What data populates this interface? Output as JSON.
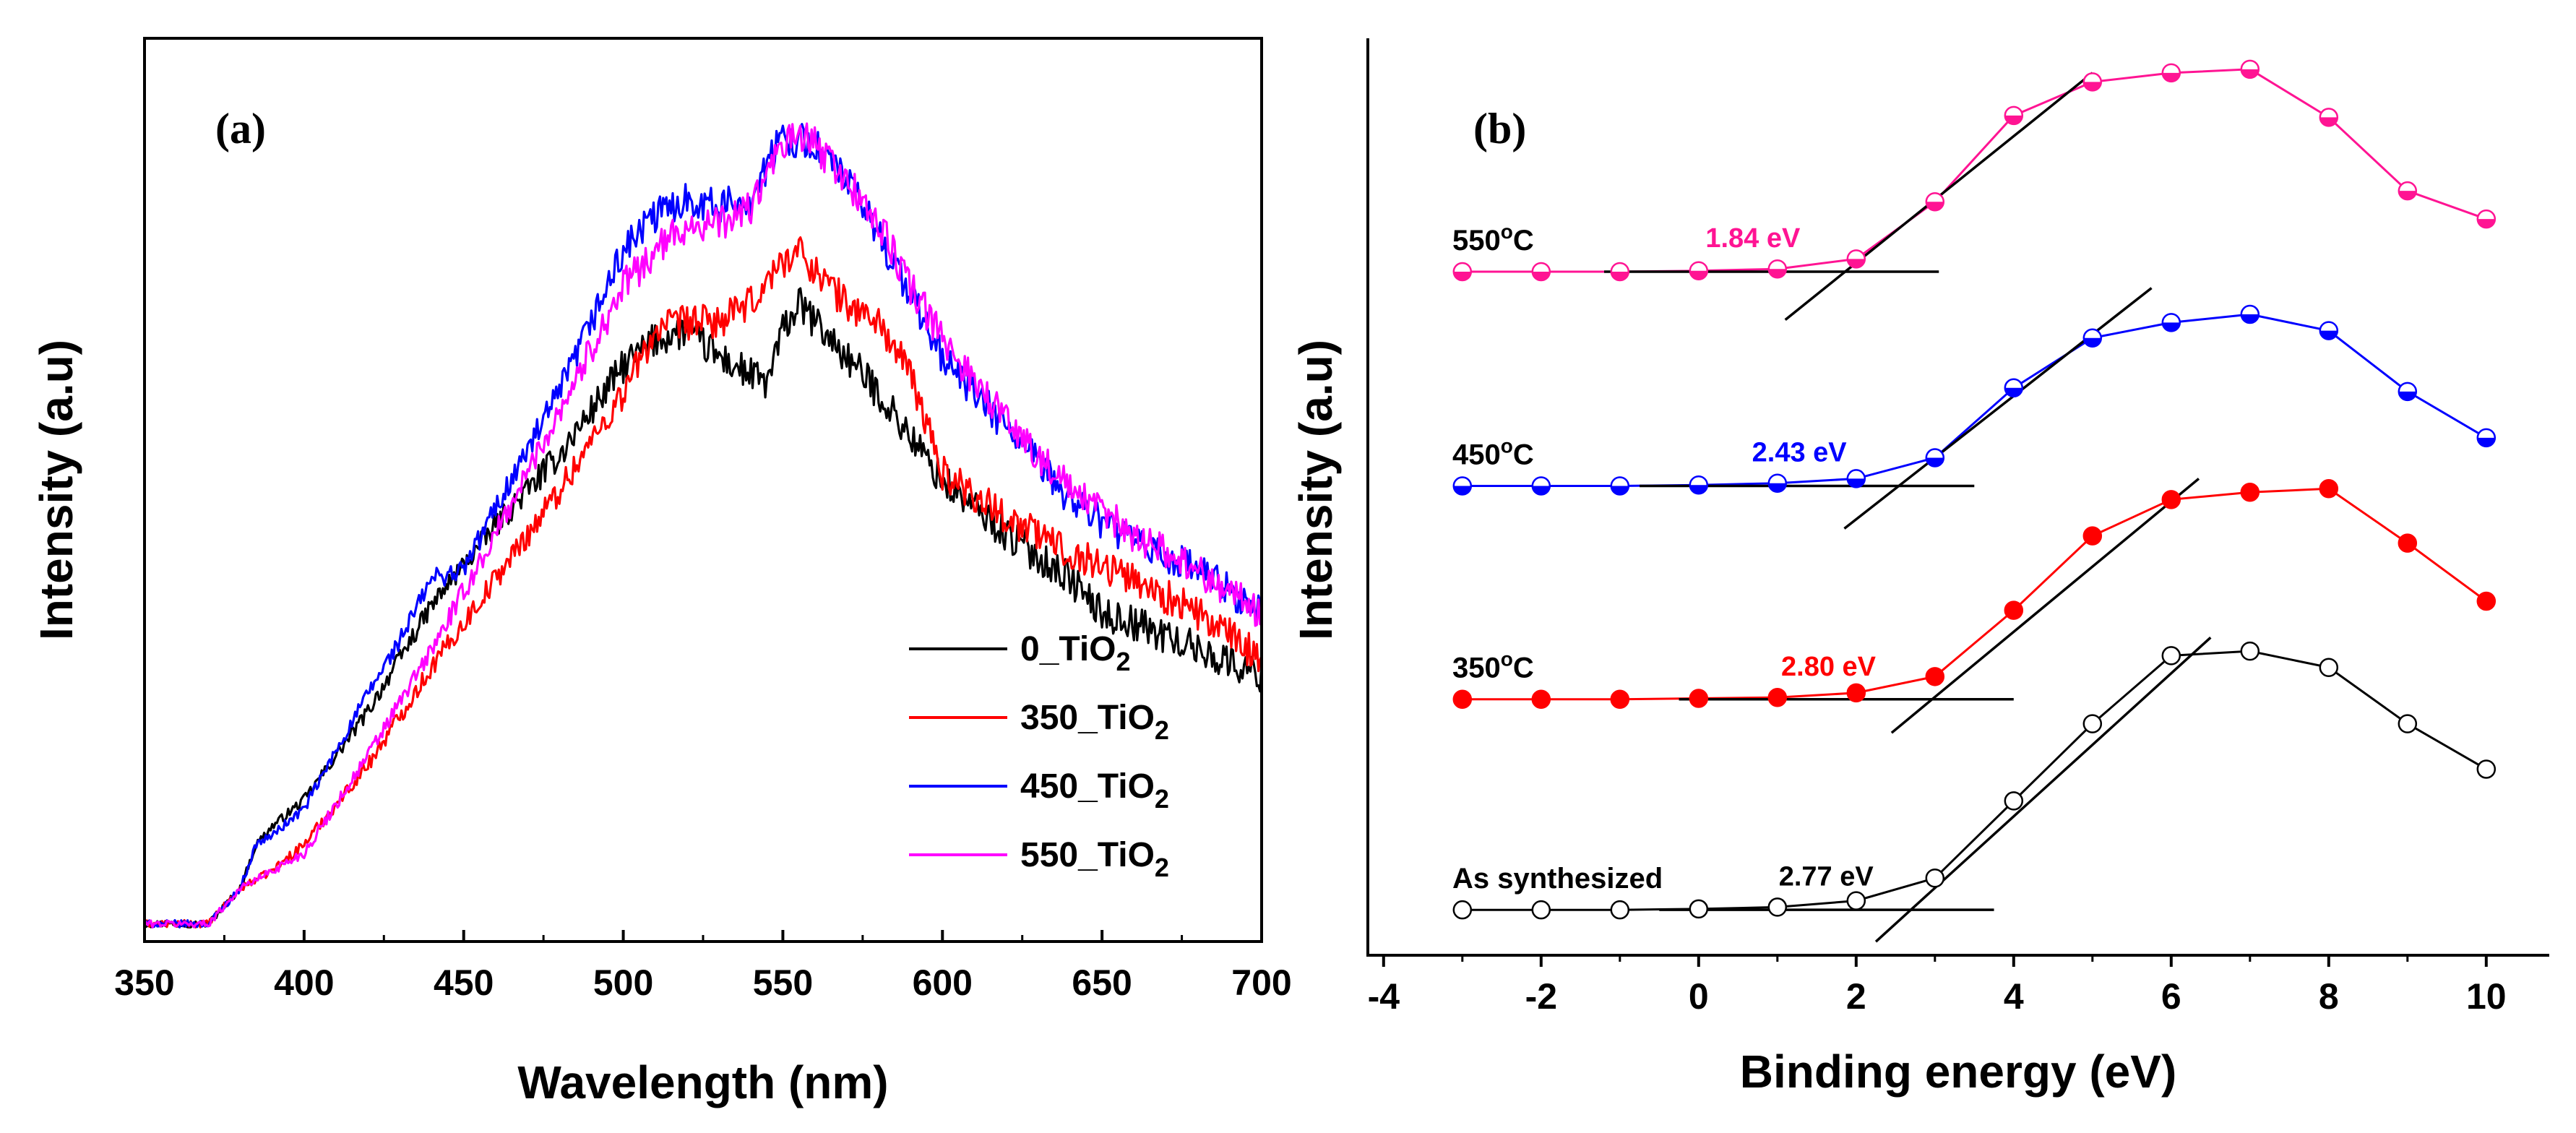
{
  "chart_data": [
    {
      "type": "line",
      "panel_label": "(a)",
      "xlabel": "Wavelength (nm)",
      "ylabel": "Intensity (a.u)",
      "xlim": [
        350,
        700
      ],
      "ylim": [
        0,
        1
      ],
      "xticks": [
        350,
        400,
        450,
        500,
        550,
        600,
        650,
        700
      ],
      "yticks_shown": false,
      "legend_position": "lower-right",
      "series": [
        {
          "name": "0_TiO2",
          "label_main": "0_TiO",
          "label_sub": "2",
          "color": "#000000",
          "x": [
            350,
            370,
            380,
            385,
            390,
            400,
            420,
            440,
            460,
            480,
            500,
            510,
            520,
            530,
            540,
            545,
            550,
            555,
            560,
            570,
            580,
            590,
            600,
            620,
            640,
            650,
            660,
            680,
            700
          ],
          "y": [
            0.02,
            0.02,
            0.06,
            0.11,
            0.13,
            0.16,
            0.26,
            0.38,
            0.47,
            0.55,
            0.65,
            0.68,
            0.69,
            0.66,
            0.64,
            0.63,
            0.69,
            0.72,
            0.7,
            0.66,
            0.62,
            0.57,
            0.52,
            0.46,
            0.41,
            0.37,
            0.36,
            0.33,
            0.3
          ]
        },
        {
          "name": "350_TiO2",
          "label_main": "350_TiO",
          "label_sub": "2",
          "color": "#ff0000",
          "x": [
            350,
            370,
            380,
            390,
            400,
            420,
            440,
            460,
            480,
            500,
            510,
            520,
            530,
            540,
            550,
            555,
            560,
            570,
            580,
            590,
            600,
            620,
            640,
            660,
            680,
            700
          ],
          "y": [
            0.02,
            0.02,
            0.06,
            0.08,
            0.11,
            0.2,
            0.31,
            0.41,
            0.51,
            0.62,
            0.69,
            0.7,
            0.7,
            0.72,
            0.77,
            0.78,
            0.76,
            0.72,
            0.7,
            0.64,
            0.53,
            0.48,
            0.44,
            0.41,
            0.37,
            0.32
          ]
        },
        {
          "name": "450_TiO2",
          "label_main": "450_TiO",
          "label_sub": "2",
          "color": "#0000ff",
          "x": [
            350,
            370,
            380,
            385,
            390,
            400,
            420,
            430,
            440,
            450,
            460,
            480,
            500,
            510,
            520,
            530,
            540,
            550,
            560,
            570,
            580,
            590,
            600,
            620,
            640,
            660,
            680,
            700
          ],
          "y": [
            0.02,
            0.02,
            0.06,
            0.11,
            0.12,
            0.15,
            0.28,
            0.34,
            0.41,
            0.42,
            0.49,
            0.62,
            0.78,
            0.82,
            0.84,
            0.83,
            0.84,
            0.91,
            0.9,
            0.86,
            0.8,
            0.73,
            0.66,
            0.58,
            0.5,
            0.45,
            0.42,
            0.37
          ]
        },
        {
          "name": "550_TiO2",
          "label_main": "550_TiO",
          "label_sub": "2",
          "color": "#ff00ff",
          "x": [
            350,
            370,
            380,
            390,
            400,
            420,
            440,
            460,
            480,
            500,
            510,
            520,
            530,
            540,
            550,
            555,
            560,
            570,
            580,
            590,
            600,
            620,
            640,
            660,
            680,
            700
          ],
          "y": [
            0.02,
            0.02,
            0.06,
            0.08,
            0.1,
            0.21,
            0.33,
            0.46,
            0.6,
            0.74,
            0.78,
            0.81,
            0.81,
            0.83,
            0.9,
            0.91,
            0.9,
            0.86,
            0.81,
            0.74,
            0.68,
            0.59,
            0.51,
            0.46,
            0.42,
            0.37
          ]
        }
      ]
    },
    {
      "type": "line",
      "panel_label": "(b)",
      "xlabel": "Binding energy (eV)",
      "ylabel": "Intensity (a.u)",
      "xlim": [
        -4.2,
        10.8
      ],
      "ylim": [
        0,
        1
      ],
      "xticks": [
        -4,
        -2,
        0,
        2,
        4,
        6,
        8,
        10
      ],
      "yticks_shown": false,
      "series": [
        {
          "name": "As synthesized",
          "label_main": "As synthesized",
          "label_sup": "",
          "label_tail": "",
          "color": "#000000",
          "marker": "open-circle",
          "x": [
            -3,
            -2,
            -1,
            0,
            1,
            2,
            3,
            4,
            5,
            6,
            7,
            8,
            9,
            10
          ],
          "y": [
            0.05,
            0.05,
            0.05,
            0.051,
            0.053,
            0.06,
            0.085,
            0.17,
            0.255,
            0.33,
            0.335,
            0.317,
            0.255,
            0.205
          ],
          "onset_label": "2.77 eV",
          "onset": 2.77,
          "baseline": {
            "x": [
              -0.5,
              3.75
            ],
            "y": [
              0.05,
              0.05
            ]
          },
          "tangent": {
            "x": [
              2.25,
              6.5
            ],
            "y": [
              0.015,
              0.35
            ]
          }
        },
        {
          "name": "350oC",
          "label_main": "350",
          "label_sup": "o",
          "label_tail": "C",
          "color": "#ff0000",
          "marker": "filled-circle",
          "x": [
            -3,
            -2,
            -1,
            0,
            1,
            2,
            3,
            4,
            5,
            6,
            7,
            8,
            9,
            10
          ],
          "y": [
            0.282,
            0.282,
            0.282,
            0.283,
            0.284,
            0.289,
            0.307,
            0.38,
            0.462,
            0.502,
            0.51,
            0.514,
            0.454,
            0.39
          ],
          "onset_label": "2.80 eV",
          "onset": 2.8,
          "baseline": {
            "x": [
              -0.25,
              4.0
            ],
            "y": [
              0.282,
              0.282
            ]
          },
          "tangent": {
            "x": [
              2.45,
              6.35
            ],
            "y": [
              0.245,
              0.525
            ]
          }
        },
        {
          "name": "450oC",
          "label_main": "450",
          "label_sup": "o",
          "label_tail": "C",
          "color": "#0000ff",
          "marker": "half-filled-circle",
          "x": [
            -3,
            -2,
            -1,
            0,
            1,
            2,
            3,
            4,
            5,
            6,
            7,
            8,
            9,
            10
          ],
          "y": [
            0.517,
            0.517,
            0.517,
            0.518,
            0.52,
            0.525,
            0.548,
            0.625,
            0.68,
            0.697,
            0.706,
            0.688,
            0.621,
            0.57
          ],
          "onset_label": "2.43 eV",
          "onset": 2.43,
          "baseline": {
            "x": [
              -0.75,
              3.5
            ],
            "y": [
              0.517,
              0.517
            ]
          },
          "tangent": {
            "x": [
              1.85,
              5.75
            ],
            "y": [
              0.47,
              0.735
            ]
          }
        },
        {
          "name": "550oC",
          "label_main": "550",
          "label_sup": "o",
          "label_tail": "C",
          "color": "#ff1493",
          "marker": "half-filled-circle",
          "x": [
            -3,
            -2,
            -1,
            0,
            1,
            2,
            3,
            4,
            5,
            6,
            7,
            8,
            9,
            10
          ],
          "y": [
            0.753,
            0.753,
            0.753,
            0.754,
            0.756,
            0.767,
            0.83,
            0.925,
            0.962,
            0.972,
            0.976,
            0.923,
            0.842,
            0.811
          ],
          "onset_label": "1.84 eV",
          "onset": 1.84,
          "baseline": {
            "x": [
              -1.2,
              3.05
            ],
            "y": [
              0.753,
              0.753
            ]
          },
          "tangent": {
            "x": [
              1.1,
              5.0
            ],
            "y": [
              0.7,
              0.972
            ]
          }
        }
      ]
    }
  ]
}
